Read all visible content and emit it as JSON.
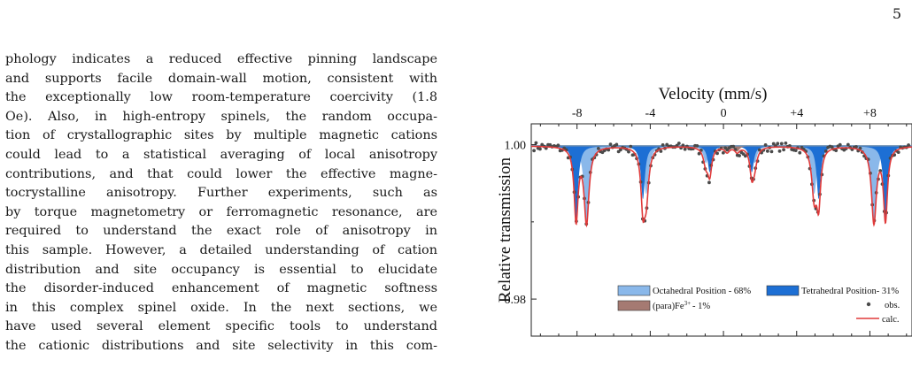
{
  "page_number": "5",
  "paragraph_lines": [
    "phology indicates a reduced effective pinning landscape",
    "and supports facile domain-wall motion, consistent with",
    "the exceptionally low room-temperature coercivity (1.8",
    "Oe). Also, in high-entropy spinels, the random occupa-",
    "tion of crystallographic sites by multiple magnetic cations",
    "could lead to a statistical averaging of local anisotropy",
    "contributions, and that could lower the effective magne-",
    "tocrystalline anisotropy. Further experiments, such as",
    "by torque magnetometry or ferromagnetic resonance, are",
    "required to understand the exact role of anisotropy in",
    "this sample. However, a detailed understanding of cation",
    "distribution and site occupancy is essential to elucidate",
    "the disorder-induced enhancement of magnetic softness",
    "in this complex spinel oxide. In the next sections, we",
    "have used several element specific tools to understand",
    "the cationic distributions and site selectivity in this com-"
  ],
  "chart_data": {
    "type": "line",
    "xlabel": "Velocity (mm/s)",
    "ylabel": "Relative transmission",
    "x_tick_labels": [
      "-8",
      "-4",
      "0",
      "+4",
      "+8"
    ],
    "x_ticks": [
      -8,
      -4,
      0,
      4,
      8
    ],
    "y_tick_labels": [
      "1.00",
      "0.98"
    ],
    "y_ticks": [
      1.0,
      0.98
    ],
    "xlim": [
      -10.5,
      10.3
    ],
    "ylim": [
      0.9752,
      1.0027
    ],
    "baseline": 0.99985,
    "legend": {
      "octahedral": "Octahedral Position - 68%",
      "tetrahedral": "Tetrahedral Position- 31%",
      "para_prefix": "(para)Fe",
      "para_sup": "3+",
      "para_suffix": "- 1%",
      "obs": "obs.",
      "calc": "calc."
    },
    "colors": {
      "octahedral": "#8ab8ea",
      "tetrahedral": "#1d6fd4",
      "para": "#a57a72",
      "calc": "#e03a3a",
      "obs": "#4a4a4a"
    },
    "sextets": [
      {
        "name": "Octahedral Position - 68%",
        "centers": [
          -7.48,
          -4.22,
          -0.96,
          1.7,
          4.96,
          8.22
        ],
        "depths": [
          0.0098,
          0.0062,
          0.0022,
          0.0022,
          0.0062,
          0.0098
        ],
        "width": 0.32
      },
      {
        "name": "Tetrahedral Position- 31%",
        "centers": [
          -8.05,
          -4.4,
          -0.75,
          1.55,
          5.2,
          8.85
        ],
        "depths": [
          0.0094,
          0.0069,
          0.0034,
          0.0034,
          0.0069,
          0.0094
        ],
        "width": 0.26
      }
    ],
    "doublet": {
      "name": "(para)Fe3+- 1%",
      "centers": [
        0.2,
        0.75
      ],
      "depths": [
        0.0007,
        0.0007
      ],
      "width": 0.3
    }
  }
}
